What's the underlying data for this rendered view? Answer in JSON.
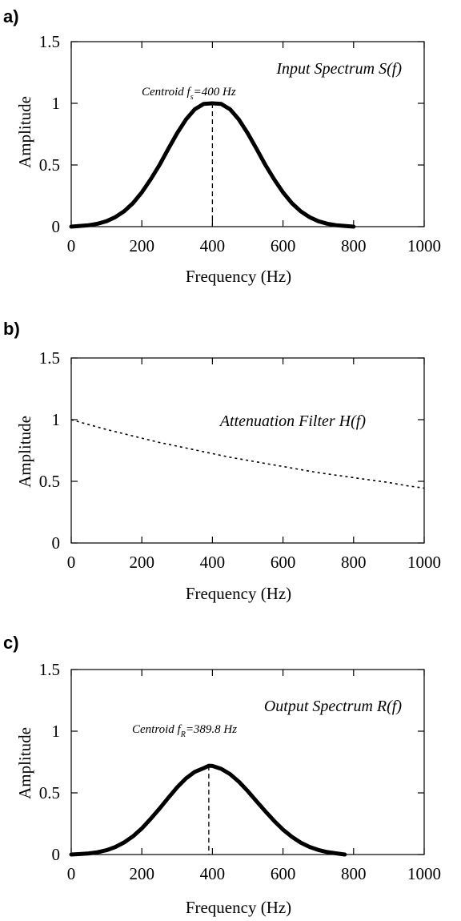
{
  "chart_data": [
    {
      "type": "line",
      "panel_label": "a)",
      "title": "Input Spectrum S(f)",
      "xlabel": "Frequency (Hz)",
      "ylabel": "Amplitude",
      "xlim": [
        0,
        1000
      ],
      "ylim": [
        0,
        1.5
      ],
      "x_ticks": [
        0,
        200,
        400,
        600,
        800,
        1000
      ],
      "y_ticks": [
        0,
        0.5,
        1,
        1.5
      ],
      "x_tick_labels": [
        "0",
        "200",
        "400",
        "600",
        "800",
        "1000"
      ],
      "y_tick_labels": [
        "0",
        "0.5",
        "1",
        "1.5"
      ],
      "series": [
        {
          "line_style": "solid-thick",
          "color": "#000000",
          "x": [
            0,
            25,
            50,
            75,
            100,
            125,
            150,
            175,
            200,
            225,
            250,
            275,
            300,
            325,
            350,
            375,
            400,
            425,
            450,
            475,
            500,
            525,
            550,
            575,
            600,
            625,
            650,
            675,
            700,
            725,
            750,
            775,
            800
          ],
          "y": [
            0.0,
            0.006,
            0.012,
            0.024,
            0.044,
            0.077,
            0.125,
            0.191,
            0.278,
            0.383,
            0.5,
            0.631,
            0.757,
            0.868,
            0.951,
            0.995,
            1.0,
            0.995,
            0.951,
            0.868,
            0.757,
            0.631,
            0.5,
            0.383,
            0.278,
            0.191,
            0.125,
            0.077,
            0.044,
            0.024,
            0.012,
            0.006,
            0.0
          ]
        }
      ],
      "annotation": {
        "prefix": "Centroid f",
        "subscript": "s",
        "suffix": "=400 Hz",
        "x": 400,
        "y": 1.0
      }
    },
    {
      "type": "line",
      "panel_label": "b)",
      "title": "Attenuation Filter H(f)",
      "xlabel": "Frequency (Hz)",
      "ylabel": "Amplitude",
      "xlim": [
        0,
        1000
      ],
      "ylim": [
        0,
        1.5
      ],
      "x_ticks": [
        0,
        200,
        400,
        600,
        800,
        1000
      ],
      "y_ticks": [
        0,
        0.5,
        1,
        1.5
      ],
      "x_tick_labels": [
        "0",
        "200",
        "400",
        "600",
        "800",
        "1000"
      ],
      "y_tick_labels": [
        "0",
        "0.5",
        "1",
        "1.5"
      ],
      "series": [
        {
          "line_style": "dotted",
          "color": "#000000",
          "x": [
            0,
            50,
            100,
            150,
            200,
            250,
            300,
            350,
            400,
            450,
            500,
            550,
            600,
            650,
            700,
            750,
            800,
            850,
            900,
            950,
            1000
          ],
          "y": [
            1.0,
            0.96,
            0.92,
            0.885,
            0.85,
            0.815,
            0.785,
            0.755,
            0.725,
            0.695,
            0.67,
            0.645,
            0.62,
            0.595,
            0.57,
            0.55,
            0.53,
            0.51,
            0.49,
            0.465,
            0.445
          ]
        }
      ]
    },
    {
      "type": "line",
      "panel_label": "c)",
      "title": "Output Spectrum R(f)",
      "xlabel": "Frequency (Hz)",
      "ylabel": "Amplitude",
      "xlim": [
        0,
        1000
      ],
      "ylim": [
        0,
        1.5
      ],
      "x_ticks": [
        0,
        200,
        400,
        600,
        800,
        1000
      ],
      "y_ticks": [
        0,
        0.5,
        1,
        1.5
      ],
      "x_tick_labels": [
        "0",
        "200",
        "400",
        "600",
        "800",
        "1000"
      ],
      "y_tick_labels": [
        "0",
        "0.5",
        "1",
        "1.5"
      ],
      "series": [
        {
          "line_style": "solid-thick",
          "color": "#000000",
          "x": [
            0,
            25,
            50,
            75,
            100,
            125,
            150,
            175,
            200,
            225,
            250,
            275,
            300,
            325,
            350,
            375,
            390,
            400,
            425,
            450,
            475,
            500,
            525,
            550,
            575,
            600,
            625,
            650,
            675,
            700,
            725,
            750,
            775
          ],
          "y": [
            0.0,
            0.004,
            0.009,
            0.019,
            0.035,
            0.061,
            0.098,
            0.148,
            0.212,
            0.289,
            0.372,
            0.46,
            0.545,
            0.617,
            0.67,
            0.7,
            0.72,
            0.718,
            0.695,
            0.652,
            0.59,
            0.515,
            0.432,
            0.35,
            0.272,
            0.202,
            0.144,
            0.097,
            0.062,
            0.037,
            0.02,
            0.01,
            0.0
          ]
        }
      ],
      "annotation": {
        "prefix": "Centroid f",
        "subscript": "R",
        "suffix": "=389.8 Hz",
        "x": 389.8,
        "y": 0.72
      }
    }
  ]
}
